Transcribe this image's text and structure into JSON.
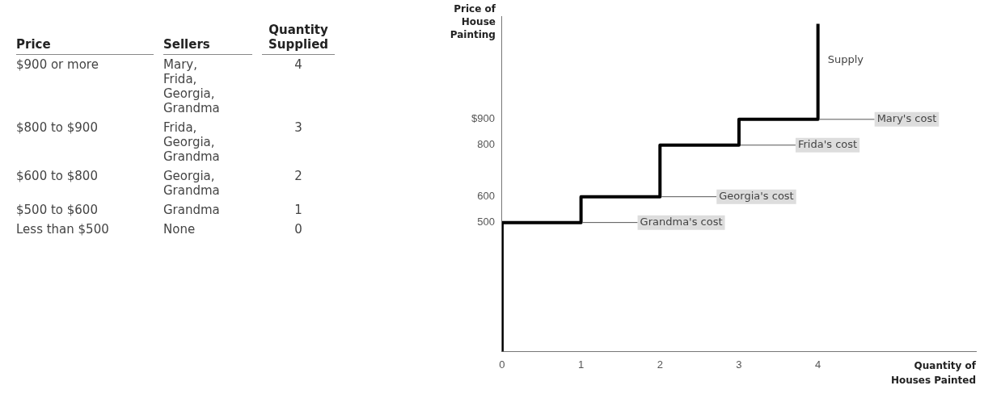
{
  "chart_data": [
    {
      "type": "other",
      "annotations": [
        "Price",
        "Sellers",
        "Quantity Supplied",
        "$900 or more",
        "Mary, Frida, Georgia, Grandma",
        "4",
        "$800 to $900",
        "Frida, Georgia, Grandma",
        "3",
        "$600 to $800",
        "Georgia, Grandma",
        "2",
        "$500 to $600",
        "Grandma",
        "1",
        "Less than $500",
        "None",
        "0"
      ]
    },
    {
      "type": "line",
      "ylabel": "Price of House Painting",
      "xlabel": "Quantity of Houses Painted",
      "series": [
        {
          "name": "Supply",
          "color": "#000000",
          "x": [
            0,
            0,
            1,
            1,
            2,
            2,
            3,
            3,
            4,
            4
          ],
          "values": [
            0,
            500,
            500,
            600,
            600,
            800,
            800,
            900,
            900,
            1270
          ]
        }
      ],
      "annotations": [
        {
          "text": "Mary's cost",
          "x": 4,
          "y": 900
        },
        {
          "text": "Frida's cost",
          "x": 3,
          "y": 800
        },
        {
          "text": "Georgia's cost",
          "x": 2,
          "y": 600
        },
        {
          "text": "Grandma's cost",
          "x": 1,
          "y": 500
        }
      ],
      "xlim": [
        0,
        6
      ],
      "xticks": [
        0,
        1,
        2,
        3,
        4
      ],
      "ylim": [
        0,
        1300
      ],
      "yticks": [
        500,
        600,
        800,
        {
          "value": 900,
          "label": "$900"
        }
      ],
      "grid": false,
      "legend": false,
      "marker": "none",
      "line_style": "solid"
    }
  ]
}
